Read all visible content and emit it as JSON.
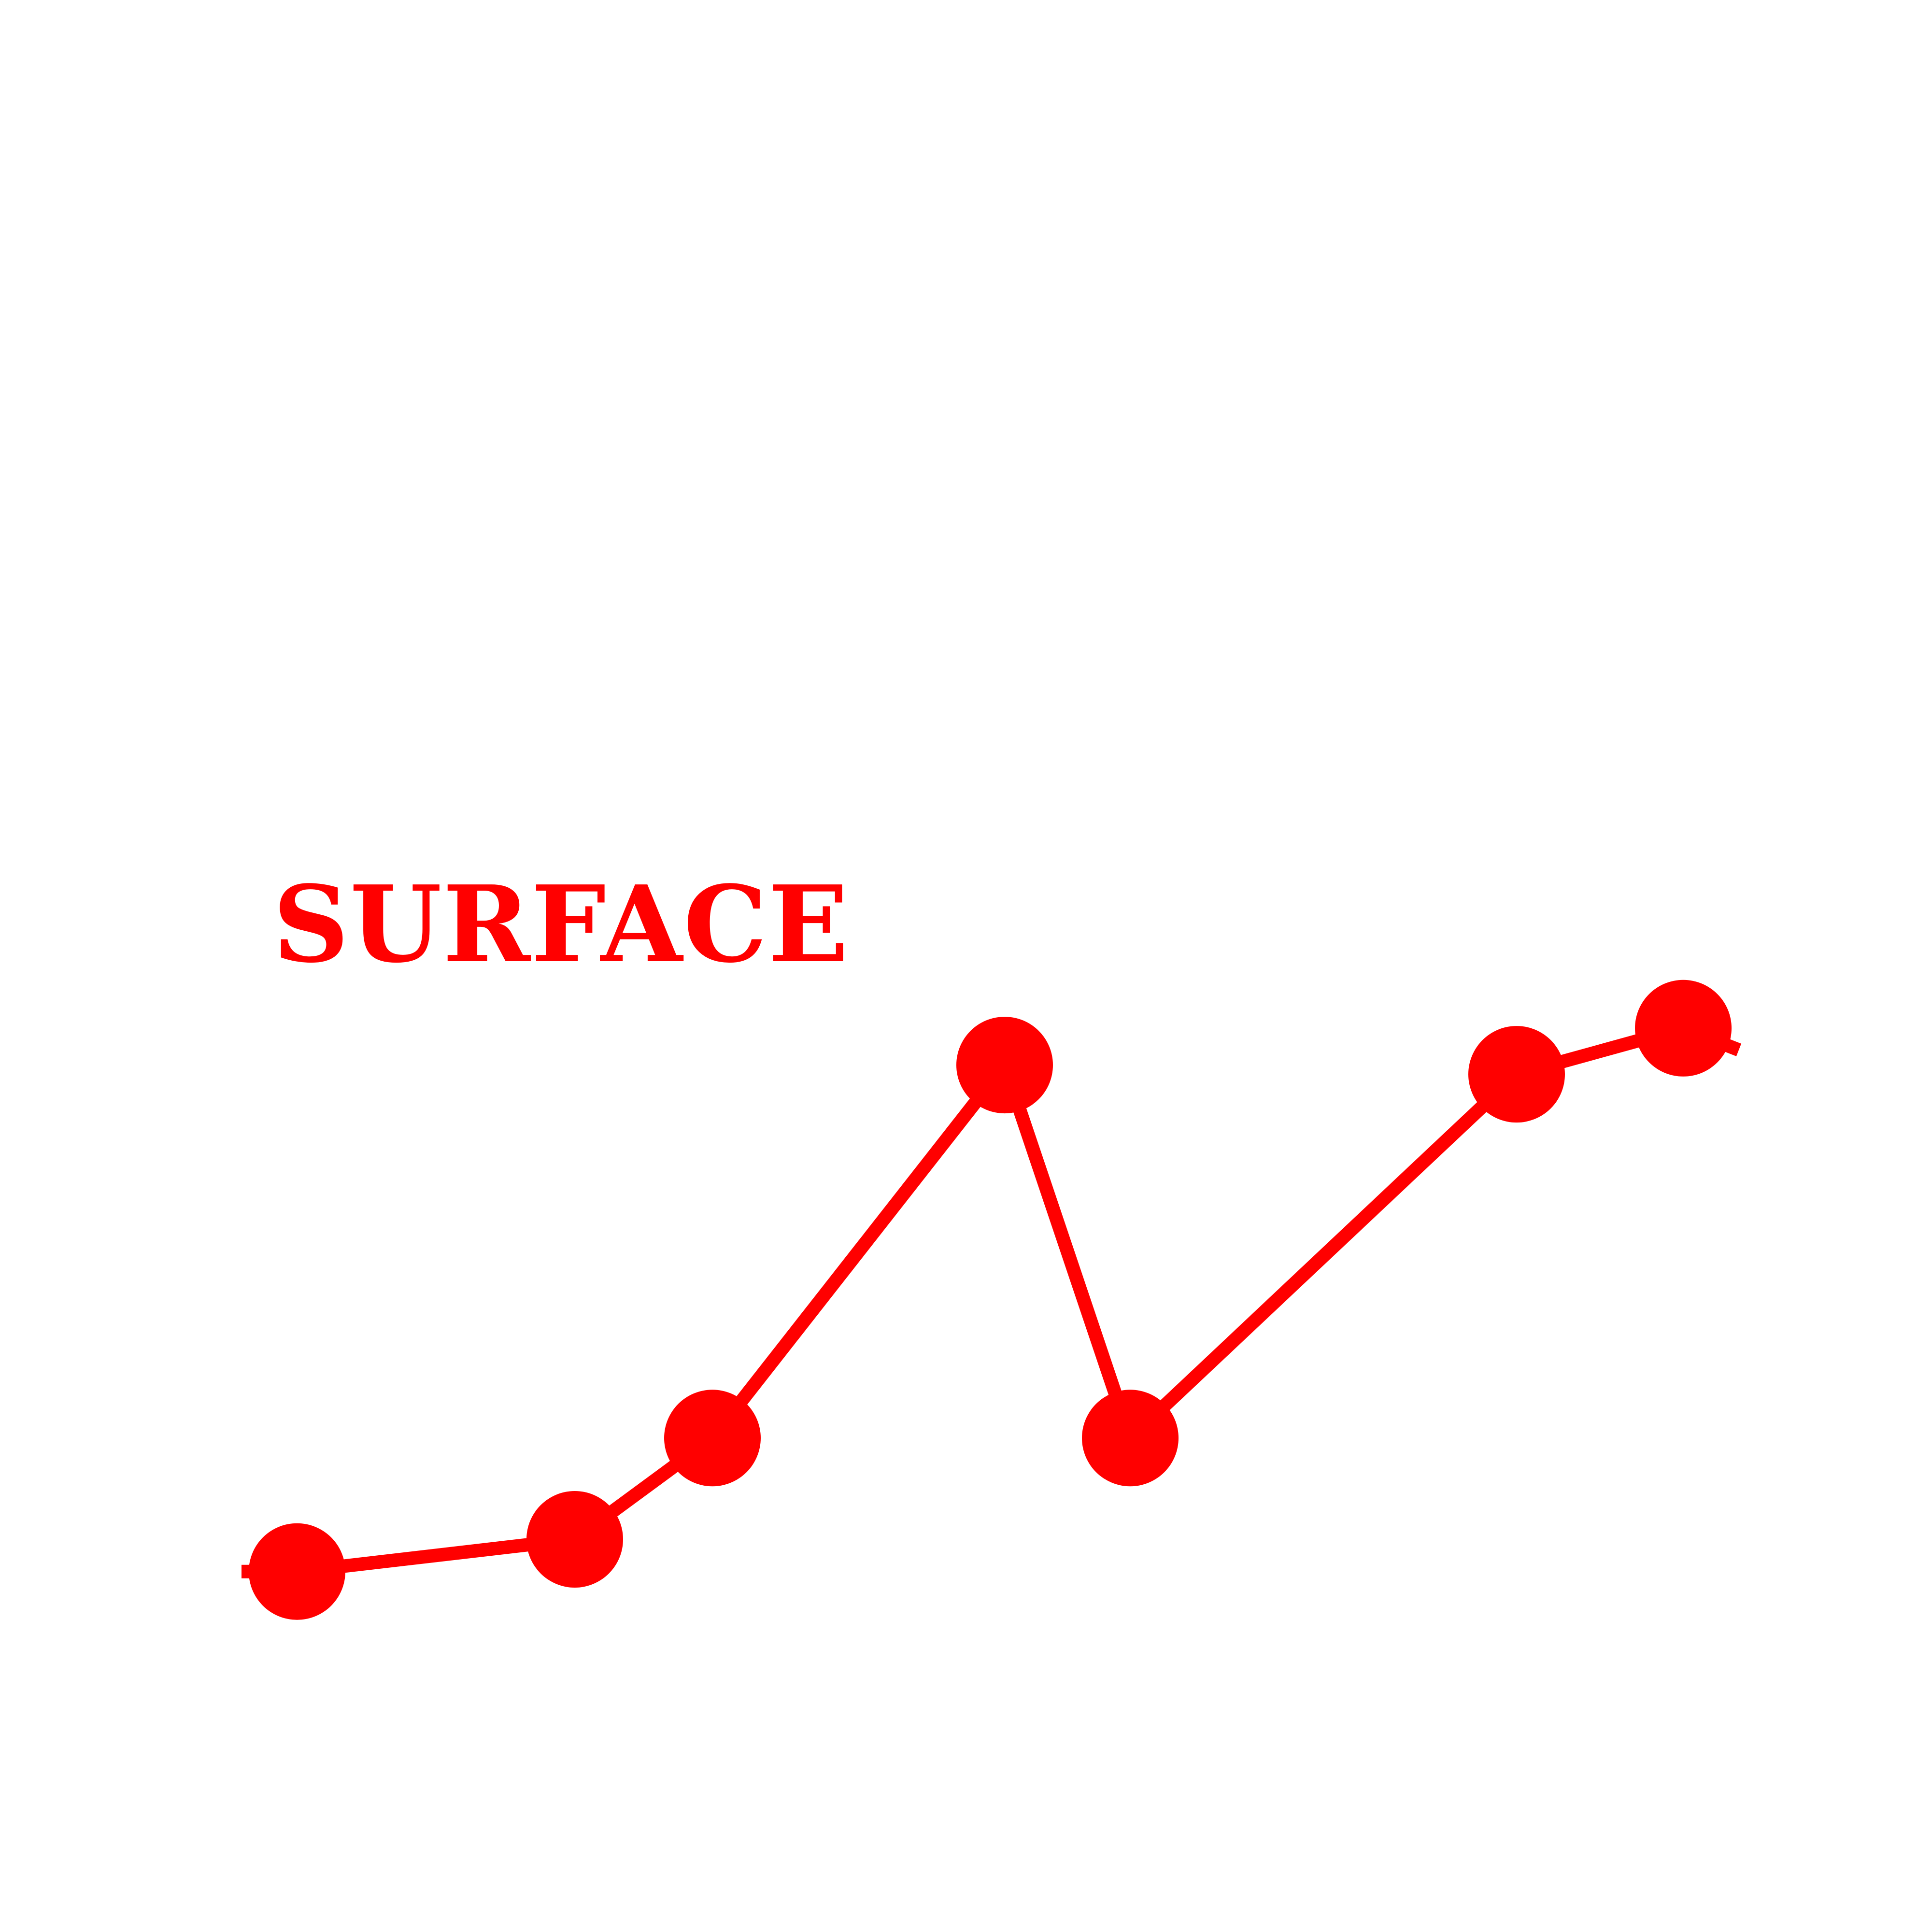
{
  "chart_data": {
    "type": "line",
    "label": "SURFACE",
    "color": "#ff0000",
    "x": [
      0,
      1,
      2,
      3,
      4,
      5,
      6
    ],
    "values": [
      0.08,
      0.15,
      0.37,
      1.18,
      0.37,
      1.16,
      1.26
    ],
    "ylim": [
      0,
      1.5
    ],
    "grid": false,
    "markers": true,
    "axes_visible": false
  }
}
